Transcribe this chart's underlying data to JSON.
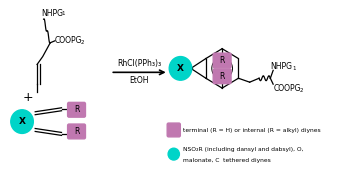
{
  "bg_color": "#ffffff",
  "purple_color": "#c078b0",
  "cyan_color": "#00d4c8",
  "text_color": "#000000",
  "legend_purple_label": "terminal (R = H) or internal (R = alkyl) diynes",
  "legend_cyan_label_1": "NSO₂R (including dansyl and dabsyl), O,",
  "legend_cyan_label_2": "malonate, C  tethered diynes",
  "reaction_conditions_line1": "RhCl(PPh₃)₃",
  "reaction_conditions_line2": "EtOH"
}
